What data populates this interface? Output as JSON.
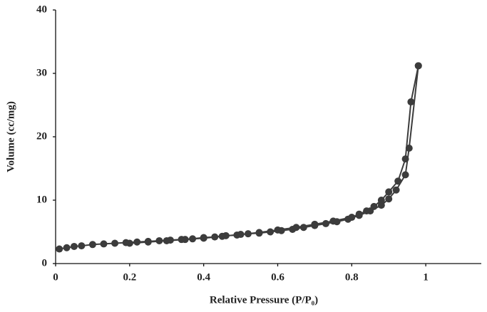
{
  "chart_data": {
    "type": "line",
    "x_label": "Relative Pressure (P/P₀)",
    "y_label": "Volume (cc/mg)",
    "xlim": [
      0,
      1.15
    ],
    "xticks": [
      0,
      0.2,
      0.4,
      0.6,
      0.8,
      1
    ],
    "ylim": [
      0,
      40
    ],
    "yticks": [
      0,
      10,
      20,
      30,
      40
    ],
    "grid": false,
    "series": [
      {
        "color": "#3c3c3c",
        "x": [
          0.01,
          0.03,
          0.05,
          0.07,
          0.1,
          0.13,
          0.16,
          0.19,
          0.22,
          0.25,
          0.28,
          0.31,
          0.34,
          0.37,
          0.4,
          0.43,
          0.46,
          0.49,
          0.52,
          0.55,
          0.58,
          0.61,
          0.64,
          0.67,
          0.7,
          0.73,
          0.76,
          0.79,
          0.82,
          0.85,
          0.88,
          0.9,
          0.92,
          0.945,
          0.955,
          0.98
        ],
        "values": [
          2.3,
          2.5,
          2.7,
          2.8,
          3.0,
          3.1,
          3.2,
          3.3,
          3.4,
          3.5,
          3.6,
          3.7,
          3.8,
          3.9,
          4.1,
          4.2,
          4.4,
          4.5,
          4.7,
          4.8,
          5.0,
          5.2,
          5.4,
          5.7,
          6.0,
          6.3,
          6.6,
          7.0,
          7.6,
          8.3,
          9.2,
          10.2,
          11.6,
          14.0,
          18.2,
          31.2
        ]
      },
      {
        "color": "#3c3c3c",
        "x": [
          0.98,
          0.96,
          0.945,
          0.925,
          0.9,
          0.88,
          0.86,
          0.84,
          0.82,
          0.8,
          0.75,
          0.7,
          0.65,
          0.6,
          0.55,
          0.5,
          0.45,
          0.4,
          0.35,
          0.3,
          0.25,
          0.2
        ],
        "values": [
          31.2,
          25.5,
          16.5,
          13.0,
          11.3,
          10.0,
          9.0,
          8.3,
          7.8,
          7.3,
          6.7,
          6.2,
          5.7,
          5.3,
          4.9,
          4.6,
          4.3,
          4.0,
          3.8,
          3.6,
          3.4,
          3.2
        ]
      }
    ]
  }
}
